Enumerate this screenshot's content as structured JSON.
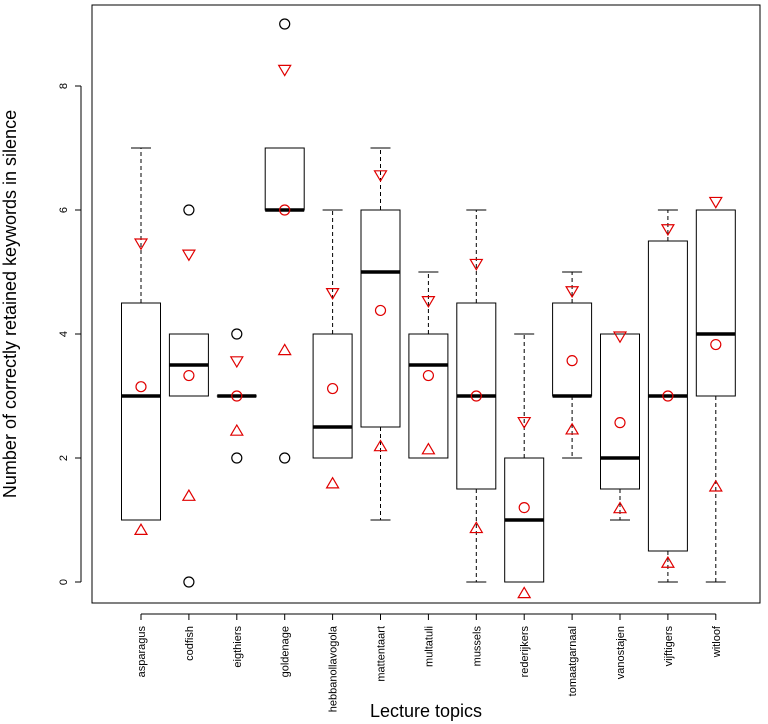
{
  "chart_data": {
    "type": "boxplot",
    "title": "",
    "xlabel": "Lecture topics",
    "ylabel": "Number of correctly retained keywords in silence",
    "ylim": [
      -0.3,
      9.3
    ],
    "yticks": [
      0,
      2,
      4,
      6,
      8
    ],
    "categories": [
      "asparagus",
      "codfish",
      "eigthiers",
      "goldenage",
      "hebbanollavogola",
      "mattentaart",
      "multatuli",
      "mussels",
      "rederijkers",
      "tomaatgarnaal",
      "vanostajen",
      "vijftigers",
      "witloof"
    ],
    "boxes": [
      {
        "whisker_low": 1,
        "q1": 1,
        "median": 3,
        "q3": 4.5,
        "whisker_high": 7,
        "outliers": [],
        "mean": 3.15,
        "upper_marker": 5.45,
        "lower_marker": 0.85
      },
      {
        "whisker_low": 3,
        "q1": 3,
        "median": 3.5,
        "q3": 4,
        "whisker_high": 4,
        "outliers": [
          6,
          0
        ],
        "mean": 3.33,
        "upper_marker": 5.27,
        "lower_marker": 1.4
      },
      {
        "whisker_low": 3,
        "q1": 3,
        "median": 3,
        "q3": 3,
        "whisker_high": 3,
        "outliers": [
          4,
          2
        ],
        "mean": 3.0,
        "upper_marker": 3.55,
        "lower_marker": 2.45
      },
      {
        "whisker_low": 6,
        "q1": 6,
        "median": 6,
        "q3": 7,
        "whisker_high": 7,
        "outliers": [
          9,
          2
        ],
        "mean": 6.0,
        "upper_marker": 8.25,
        "lower_marker": 3.75
      },
      {
        "whisker_low": 2,
        "q1": 2,
        "median": 2.5,
        "q3": 4,
        "whisker_high": 6,
        "outliers": [],
        "mean": 3.12,
        "upper_marker": 4.65,
        "lower_marker": 1.6
      },
      {
        "whisker_low": 1,
        "q1": 2.5,
        "median": 5,
        "q3": 6,
        "whisker_high": 7,
        "outliers": [],
        "mean": 4.38,
        "upper_marker": 6.55,
        "lower_marker": 2.2
      },
      {
        "whisker_low": 2,
        "q1": 2,
        "median": 3.5,
        "q3": 4,
        "whisker_high": 5,
        "outliers": [],
        "mean": 3.33,
        "upper_marker": 4.52,
        "lower_marker": 2.15
      },
      {
        "whisker_low": 0,
        "q1": 1.5,
        "median": 3,
        "q3": 4.5,
        "whisker_high": 6,
        "outliers": [],
        "mean": 3.0,
        "upper_marker": 5.12,
        "lower_marker": 0.88
      },
      {
        "whisker_low": 0,
        "q1": 0,
        "median": 1,
        "q3": 2,
        "whisker_high": 4,
        "outliers": [],
        "mean": 1.2,
        "upper_marker": 2.57,
        "lower_marker": -0.17
      },
      {
        "whisker_low": 2,
        "q1": 3,
        "median": 3,
        "q3": 4.5,
        "whisker_high": 5,
        "outliers": [],
        "mean": 3.57,
        "upper_marker": 4.68,
        "lower_marker": 2.47
      },
      {
        "whisker_low": 1,
        "q1": 1.5,
        "median": 2,
        "q3": 4,
        "whisker_high": 4,
        "outliers": [],
        "mean": 2.57,
        "upper_marker": 3.95,
        "lower_marker": 1.2
      },
      {
        "whisker_low": 0,
        "q1": 0.5,
        "median": 3,
        "q3": 5.5,
        "whisker_high": 6,
        "outliers": [],
        "mean": 3.0,
        "upper_marker": 5.68,
        "lower_marker": 0.32
      },
      {
        "whisker_low": 0,
        "q1": 3,
        "median": 4,
        "q3": 6,
        "whisker_high": 6,
        "outliers": [],
        "mean": 3.83,
        "upper_marker": 6.12,
        "lower_marker": 1.55
      }
    ],
    "marker_color": "#e00000",
    "box_color": "#000000"
  }
}
